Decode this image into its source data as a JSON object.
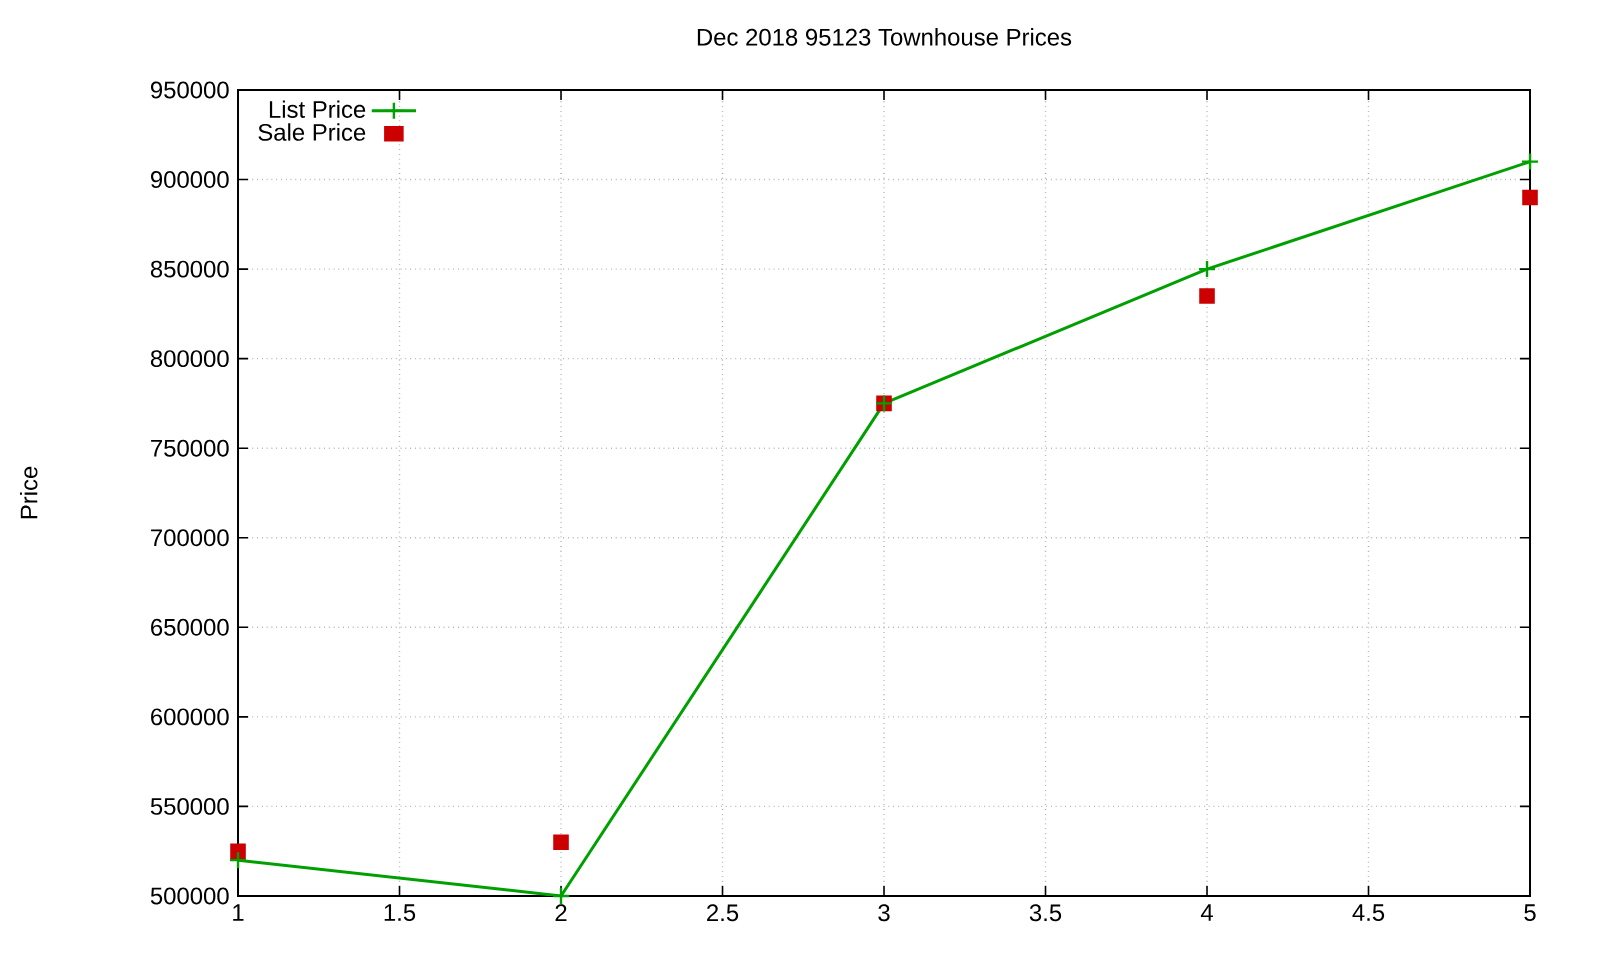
{
  "chart_data": {
    "type": "line",
    "title": "Dec 2018 95123 Townhouse Prices",
    "ylabel": "Price",
    "x": [
      1,
      2,
      3,
      4,
      5
    ],
    "series": [
      {
        "name": "List Price",
        "marker": "cross",
        "color": "#00a000",
        "values": [
          520000,
          500000,
          775000,
          850000,
          910000
        ]
      },
      {
        "name": "Sale Price",
        "type": "scatter",
        "marker": "square",
        "color": "#cc0000",
        "values": [
          525000,
          530000,
          775000,
          835000,
          890000
        ]
      }
    ],
    "xlim": [
      1,
      5
    ],
    "xticks": [
      1,
      1.5,
      2,
      2.5,
      3,
      3.5,
      4,
      4.5,
      5
    ],
    "ylim": [
      500000,
      950000
    ],
    "yticks": [
      500000,
      550000,
      600000,
      650000,
      700000,
      750000,
      800000,
      850000,
      900000,
      950000
    ],
    "grid": true,
    "legend": "top left"
  }
}
